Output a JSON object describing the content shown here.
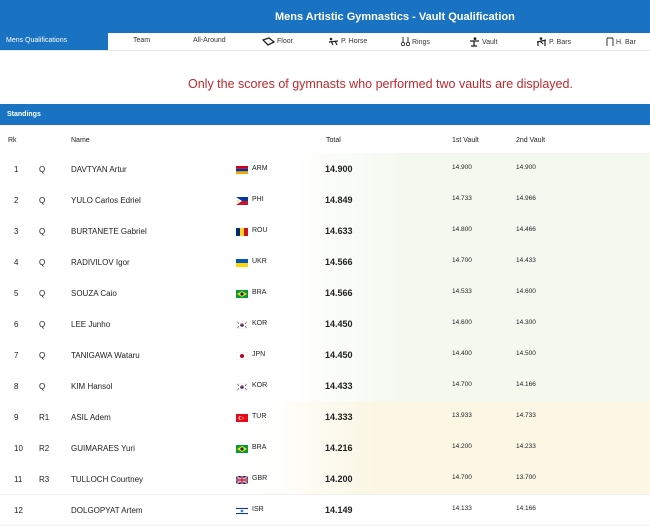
{
  "title": "Mens Artistic Gymnastics - Vault Qualification",
  "nav": {
    "active": "Mens Qualifications",
    "items": [
      {
        "label": "Team",
        "icon": ""
      },
      {
        "label": "All-Around",
        "icon": ""
      },
      {
        "label": "Floor",
        "icon": "floor-icon"
      },
      {
        "label": "P. Horse",
        "icon": "pommel-horse-icon"
      },
      {
        "label": "Rings",
        "icon": "rings-icon"
      },
      {
        "label": "Vault",
        "icon": "vault-icon"
      },
      {
        "label": "P. Bars",
        "icon": "parallel-bars-icon"
      },
      {
        "label": "H. Bar",
        "icon": "high-bar-icon"
      }
    ]
  },
  "notice": "Only the scores of gymnasts who performed two vaults are displayed.",
  "standings_label": "Standings",
  "columns": {
    "rank": "Rk",
    "name": "Name",
    "total": "Total",
    "vault1": "1st Vault",
    "vault2": "2nd Vault"
  },
  "colors": {
    "brand": "#1a73c2",
    "notice": "#c0282d",
    "qualified_bg": "#f4f9f0",
    "reserve_bg": "#fbf7e4"
  },
  "rows": [
    {
      "rank": "1",
      "qual": "Q",
      "name": "DAVTYAN Artur",
      "noc": "ARM",
      "flag": "flag-arm",
      "total": "14.900",
      "v1": "14.900",
      "v2": "14.900",
      "status": "q"
    },
    {
      "rank": "2",
      "qual": "Q",
      "name": "YULO Carlos Edriel",
      "noc": "PHI",
      "flag": "flag-phi",
      "total": "14.849",
      "v1": "14.733",
      "v2": "14.966",
      "status": "q"
    },
    {
      "rank": "3",
      "qual": "Q",
      "name": "BURTANETE Gabriel",
      "noc": "ROU",
      "flag": "flag-rou",
      "total": "14.633",
      "v1": "14.800",
      "v2": "14.466",
      "status": "q"
    },
    {
      "rank": "4",
      "qual": "Q",
      "name": "RADIVILOV Igor",
      "noc": "UKR",
      "flag": "flag-ukr",
      "total": "14.566",
      "v1": "14.700",
      "v2": "14.433",
      "status": "q"
    },
    {
      "rank": "5",
      "qual": "Q",
      "name": "SOUZA Caio",
      "noc": "BRA",
      "flag": "flag-bra",
      "total": "14.566",
      "v1": "14.533",
      "v2": "14.600",
      "status": "q"
    },
    {
      "rank": "6",
      "qual": "Q",
      "name": "LEE Junho",
      "noc": "KOR",
      "flag": "flag-kor",
      "total": "14.450",
      "v1": "14.600",
      "v2": "14.300",
      "status": "q"
    },
    {
      "rank": "7",
      "qual": "Q",
      "name": "TANIGAWA Wataru",
      "noc": "JPN",
      "flag": "flag-jpn",
      "total": "14.450",
      "v1": "14.400",
      "v2": "14.500",
      "status": "q"
    },
    {
      "rank": "8",
      "qual": "Q",
      "name": "KIM Hansol",
      "noc": "KOR",
      "flag": "flag-kor",
      "total": "14.433",
      "v1": "14.700",
      "v2": "14.166",
      "status": "q"
    },
    {
      "rank": "9",
      "qual": "R1",
      "name": "ASIL Adem",
      "noc": "TUR",
      "flag": "flag-tur",
      "total": "14.333",
      "v1": "13.933",
      "v2": "14.733",
      "status": "r"
    },
    {
      "rank": "10",
      "qual": "R2",
      "name": "GUIMARAES Yuri",
      "noc": "BRA",
      "flag": "flag-bra",
      "total": "14.216",
      "v1": "14.200",
      "v2": "14.233",
      "status": "r"
    },
    {
      "rank": "11",
      "qual": "R3",
      "name": "TULLOCH Courtney",
      "noc": "GBR",
      "flag": "flag-gbr",
      "total": "14.200",
      "v1": "14.700",
      "v2": "13.700",
      "status": "r"
    },
    {
      "rank": "12",
      "qual": "",
      "name": "DOLGOPYAT Artem",
      "noc": "ISR",
      "flag": "flag-isr",
      "total": "14.149",
      "v1": "14.133",
      "v2": "14.166",
      "status": "n"
    }
  ]
}
